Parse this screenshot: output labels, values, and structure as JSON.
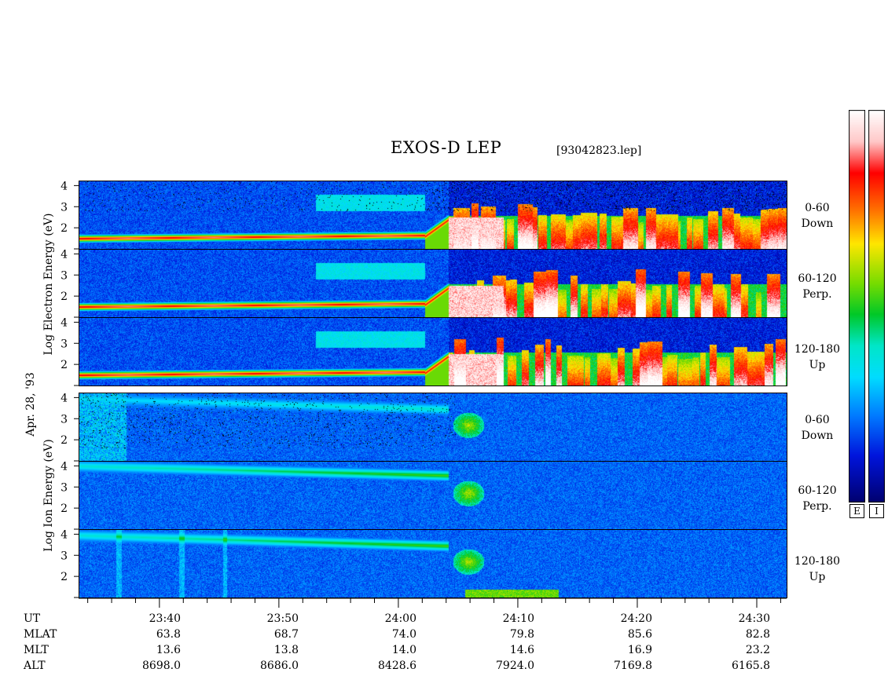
{
  "header": {
    "title": "EXOS-D LEP",
    "filename": "[93042823.lep]"
  },
  "side_labels": {
    "electron": "Log   Electron   Energy (eV)",
    "date": "Apr. 28, '93",
    "ion": "Log   Ion   Energy (eV)"
  },
  "panel_labels": [
    {
      "range": "0-60",
      "dir": "Down"
    },
    {
      "range": "60-120",
      "dir": "Perp."
    },
    {
      "range": "120-180",
      "dir": "Up"
    },
    {
      "range": "0-60",
      "dir": "Down"
    },
    {
      "range": "60-120",
      "dir": "Perp."
    },
    {
      "range": "120-180",
      "dir": "Up"
    }
  ],
  "colorbars": {
    "electron_label": "E",
    "ion_label": "I"
  },
  "ephemeris": {
    "labels": {
      "ut": "UT",
      "mlat": "MLAT",
      "mlt": "MLT",
      "alt": "ALT"
    },
    "columns": [
      {
        "ut": "23:40",
        "mlat": "63.8",
        "mlt": "13.6",
        "alt": "8698.0"
      },
      {
        "ut": "23:50",
        "mlat": "68.7",
        "mlt": "13.8",
        "alt": "8686.0"
      },
      {
        "ut": "24:00",
        "mlat": "74.0",
        "mlt": "14.0",
        "alt": "8428.6"
      },
      {
        "ut": "24:10",
        "mlat": "79.8",
        "mlt": "14.6",
        "alt": "7924.0"
      },
      {
        "ut": "24:20",
        "mlat": "85.6",
        "mlt": "16.9",
        "alt": "7169.8"
      },
      {
        "ut": "24:30",
        "mlat": "82.8",
        "mlt": "23.2",
        "alt": "6165.8"
      }
    ]
  },
  "chart_data": {
    "type": "heatmap",
    "title": "EXOS-D LEP",
    "x_axis": {
      "quantity": "UT (minutes past 23:00)",
      "range": [
        33.3,
        92.5
      ],
      "ticks": [
        "23:40",
        "23:50",
        "24:00",
        "24:10",
        "24:20",
        "24:30"
      ]
    },
    "y_axis": {
      "label": "Log Energy (eV)",
      "range": [
        1,
        4
      ],
      "ticks": [
        "2",
        "3",
        "4"
      ]
    },
    "panels": [
      {
        "species": "Electron",
        "pitch": "0-60",
        "dir": "Down"
      },
      {
        "species": "Electron",
        "pitch": "60-120",
        "dir": "Perp."
      },
      {
        "species": "Electron",
        "pitch": "120-180",
        "dir": "Up"
      },
      {
        "species": "Ion",
        "pitch": "0-60",
        "dir": "Down"
      },
      {
        "species": "Ion",
        "pitch": "60-120",
        "dir": "Perp."
      },
      {
        "species": "Ion",
        "pitch": "120-180",
        "dir": "Up"
      }
    ],
    "colors": {
      "low": "#0000b4",
      "mid": "#00e0ff",
      "high": "#ff0000",
      "max": "#ffffff"
    }
  }
}
